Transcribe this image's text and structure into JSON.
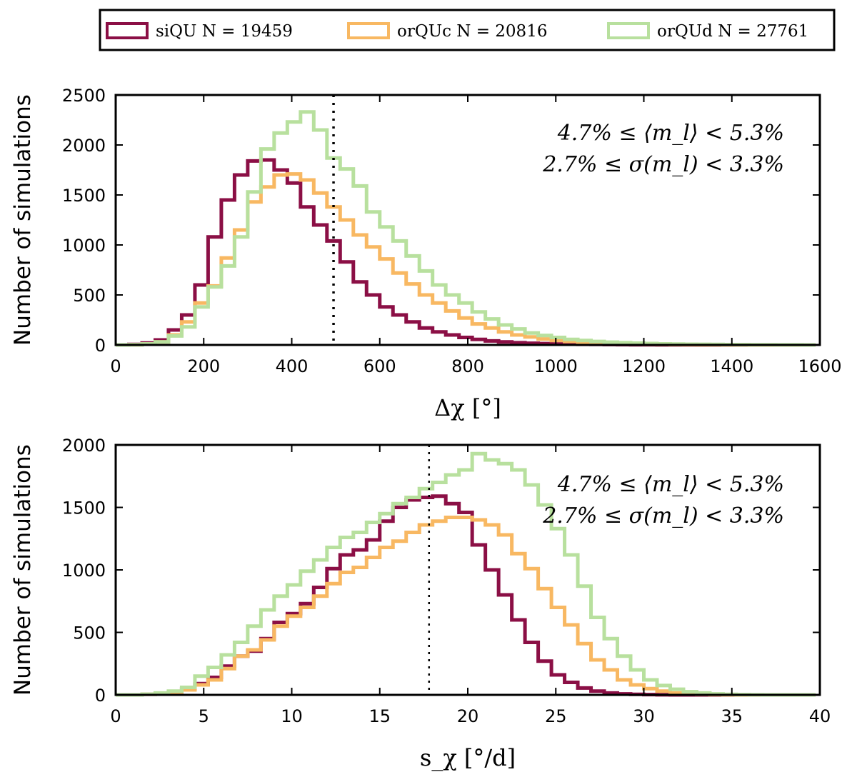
{
  "legend": {
    "entries": [
      {
        "label": "siQU N = 19459",
        "color": "#8b0f45"
      },
      {
        "label": "orQUc N = 20816",
        "color": "#f8b862"
      },
      {
        "label": "orQUd N = 27761",
        "color": "#b8e09e"
      }
    ]
  },
  "chart_data": [
    {
      "type": "histogram-step",
      "ylabel": "Number of simulations",
      "xlabel": "Δχ [°]",
      "xlim": [
        0,
        1600
      ],
      "ylim": [
        0,
        2500
      ],
      "xticks": [
        0,
        200,
        400,
        600,
        800,
        1000,
        1200,
        1400,
        1600
      ],
      "yticks": [
        0,
        500,
        1000,
        1500,
        2000,
        2500
      ],
      "vline": 495,
      "annotations": [
        "4.7% ≤ ⟨m_l⟩ < 5.3%",
        "2.7% ≤ σ(m_l) < 3.3%"
      ],
      "bin_start": 0,
      "bin_width": 30,
      "series": [
        {
          "name": "siQU",
          "color": "#8b0f45",
          "values": [
            0,
            5,
            20,
            50,
            150,
            300,
            600,
            1080,
            1450,
            1700,
            1840,
            1850,
            1750,
            1620,
            1380,
            1200,
            1040,
            830,
            630,
            500,
            380,
            300,
            230,
            170,
            130,
            100,
            75,
            55,
            40,
            30,
            22,
            17,
            13,
            10,
            8,
            6,
            5,
            4,
            3,
            2,
            2,
            1,
            1,
            1,
            0,
            0,
            0,
            0,
            0,
            0,
            0,
            0,
            0
          ]
        },
        {
          "name": "orQUc",
          "color": "#f8b862",
          "values": [
            0,
            2,
            10,
            30,
            100,
            230,
            420,
            590,
            870,
            1150,
            1430,
            1580,
            1700,
            1710,
            1650,
            1520,
            1380,
            1250,
            1100,
            980,
            860,
            720,
            610,
            500,
            420,
            340,
            270,
            210,
            170,
            130,
            100,
            80,
            60,
            45,
            35,
            25,
            20,
            15,
            10,
            8,
            6,
            5,
            4,
            3,
            2,
            2,
            1,
            1,
            0,
            0,
            0,
            0,
            0
          ]
        },
        {
          "name": "orQUd",
          "color": "#b8e09e",
          "values": [
            0,
            2,
            10,
            30,
            90,
            180,
            380,
            580,
            790,
            1080,
            1530,
            1960,
            2120,
            2230,
            2330,
            2150,
            1870,
            1760,
            1590,
            1330,
            1180,
            1040,
            890,
            740,
            600,
            500,
            420,
            330,
            260,
            200,
            160,
            120,
            95,
            75,
            55,
            45,
            35,
            28,
            22,
            18,
            14,
            11,
            9,
            7,
            6,
            5,
            4,
            3,
            2,
            2,
            1,
            1,
            0
          ]
        }
      ]
    },
    {
      "type": "histogram-step",
      "ylabel": "Number of simulations",
      "xlabel": "s_χ [°/d]",
      "xlim": [
        0,
        40
      ],
      "ylim": [
        0,
        2000
      ],
      "xticks": [
        0,
        5,
        10,
        15,
        20,
        25,
        30,
        35,
        40
      ],
      "yticks": [
        0,
        500,
        1000,
        1500,
        2000
      ],
      "vline": 17.8,
      "annotations": [
        "4.7% ≤ ⟨m_l⟩ < 5.3%",
        "2.7% ≤ σ(m_l) < 3.3%"
      ],
      "bin_start": 0,
      "bin_width": 0.75,
      "series": [
        {
          "name": "siQU",
          "color": "#8b0f45",
          "values": [
            0,
            0,
            5,
            10,
            20,
            50,
            90,
            140,
            230,
            310,
            350,
            450,
            580,
            650,
            730,
            860,
            1010,
            1120,
            1160,
            1240,
            1390,
            1500,
            1560,
            1580,
            1590,
            1530,
            1460,
            1200,
            1000,
            800,
            600,
            420,
            270,
            160,
            100,
            55,
            30,
            15,
            8,
            4,
            2,
            1,
            0,
            0,
            0,
            0,
            0,
            0,
            0,
            0,
            0,
            0,
            0
          ]
        },
        {
          "name": "orQUc",
          "color": "#f8b862",
          "values": [
            0,
            0,
            5,
            10,
            20,
            40,
            80,
            120,
            210,
            310,
            360,
            440,
            550,
            630,
            700,
            790,
            890,
            980,
            1020,
            1100,
            1180,
            1230,
            1300,
            1360,
            1390,
            1420,
            1420,
            1400,
            1360,
            1280,
            1130,
            1010,
            850,
            700,
            560,
            410,
            280,
            200,
            120,
            80,
            50,
            30,
            15,
            8,
            4,
            2,
            1,
            0,
            0,
            0,
            0,
            0,
            0
          ]
        },
        {
          "name": "orQUd",
          "color": "#b8e09e",
          "values": [
            0,
            0,
            5,
            15,
            30,
            60,
            150,
            220,
            320,
            420,
            550,
            680,
            790,
            880,
            990,
            1080,
            1180,
            1260,
            1300,
            1380,
            1450,
            1530,
            1580,
            1650,
            1700,
            1760,
            1800,
            1930,
            1880,
            1850,
            1800,
            1680,
            1520,
            1330,
            1120,
            870,
            620,
            450,
            310,
            200,
            120,
            75,
            45,
            25,
            15,
            8,
            4,
            2,
            1,
            0,
            0,
            0,
            0
          ]
        }
      ]
    }
  ]
}
